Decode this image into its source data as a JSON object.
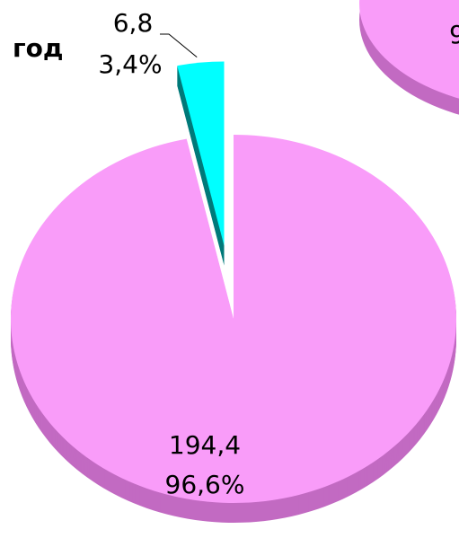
{
  "chart_data": {
    "type": "pie",
    "title": "год",
    "categories": [
      null,
      null
    ],
    "values": [
      194.4,
      6.8
    ],
    "value_labels": [
      "194,4",
      "6,8"
    ],
    "percents": [
      96.6,
      3.4
    ],
    "percent_labels": [
      "96,6%",
      "3,4%"
    ],
    "colors": [
      "#f99cf9",
      "#00ffff"
    ],
    "side_colors": [
      "#c26ac2",
      "#007a7a"
    ],
    "exploded": [
      false,
      true
    ],
    "annotations": [
      "9"
    ]
  }
}
